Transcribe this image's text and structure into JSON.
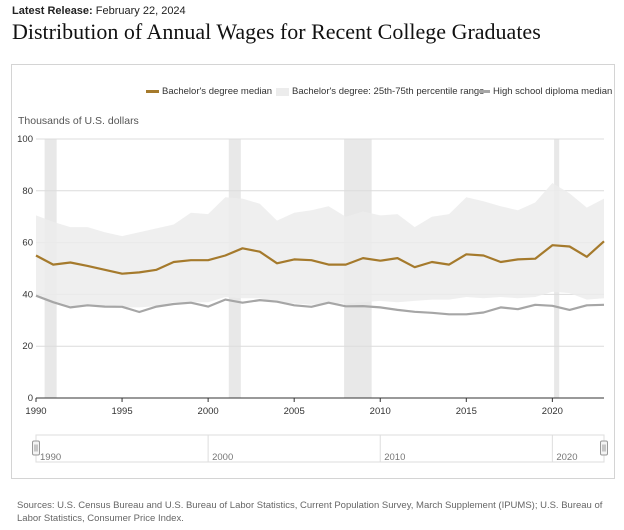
{
  "header": {
    "release_label": "Latest Release:",
    "release_date": "February 22, 2024",
    "title": "Distribution of Annual Wages for Recent College Graduates"
  },
  "legend": {
    "items": [
      {
        "label": "Bachelor's degree median",
        "color": "#a57a2c",
        "kind": "line"
      },
      {
        "label": "Bachelor's degree: 25th-75th percentile range",
        "color": "#ececec",
        "kind": "band"
      },
      {
        "label": "High school diploma median",
        "color": "#a6a6a6",
        "kind": "line"
      }
    ]
  },
  "unit_label": "Thousands of U.S. dollars",
  "navigator": {
    "labels": [
      "1990",
      "2000",
      "2010",
      "2020"
    ]
  },
  "source": "Sources: U.S. Census Bureau and U.S. Bureau of Labor Statistics, Current Population Survey, March Supplement (IPUMS); U.S. Bureau of Labor Statistics, Consumer Price Index.",
  "chart_data": {
    "type": "line",
    "title": "Distribution of Annual Wages for Recent College Graduates",
    "ylabel": "Thousands of U.S. dollars",
    "xlabel": "",
    "xlim": [
      1990,
      2023
    ],
    "ylim": [
      0,
      100
    ],
    "x_ticks": [
      1990,
      1995,
      2000,
      2005,
      2010,
      2015,
      2020
    ],
    "y_ticks": [
      0,
      20,
      40,
      60,
      80,
      100
    ],
    "grid": "horizontal",
    "legend_position": "top",
    "recessions": [
      [
        1990.5,
        1991.2
      ],
      [
        2001.2,
        2001.9
      ],
      [
        2007.9,
        2009.5
      ],
      [
        2020.1,
        2020.4
      ]
    ],
    "x": [
      1990,
      1991,
      1992,
      1993,
      1994,
      1995,
      1996,
      1997,
      1998,
      1999,
      2000,
      2001,
      2002,
      2003,
      2004,
      2005,
      2006,
      2007,
      2008,
      2009,
      2010,
      2011,
      2012,
      2013,
      2014,
      2015,
      2016,
      2017,
      2018,
      2019,
      2020,
      2021,
      2022,
      2023
    ],
    "series": [
      {
        "name": "Bachelor's degree median",
        "color": "#a57a2c",
        "values": [
          55.0,
          51.5,
          52.3,
          51.0,
          49.5,
          48.0,
          48.5,
          49.5,
          52.5,
          53.2,
          53.2,
          55.0,
          57.8,
          56.5,
          52.0,
          53.5,
          53.2,
          51.5,
          51.5,
          54.0,
          53.0,
          54.0,
          50.5,
          52.5,
          51.5,
          55.5,
          55.0,
          52.5,
          53.5,
          53.8,
          59.0,
          58.5,
          54.5,
          60.5
        ]
      },
      {
        "name": "Bachelor's degree: 25th-75th percentile range",
        "color": "#ececec",
        "lower": [
          40.0,
          37.5,
          35.5,
          36.0,
          35.5,
          35.0,
          35.0,
          35.5,
          37.0,
          37.0,
          37.0,
          39.0,
          38.5,
          38.5,
          37.0,
          36.5,
          36.0,
          36.5,
          36.5,
          37.0,
          37.5,
          37.0,
          37.5,
          38.0,
          38.0,
          39.0,
          38.5,
          39.0,
          38.5,
          39.0,
          41.0,
          40.5,
          38.0,
          38.5
        ],
        "upper": [
          70.5,
          68.0,
          66.0,
          66.0,
          64.0,
          62.5,
          64.0,
          65.5,
          67.0,
          71.5,
          71.0,
          77.5,
          77.0,
          75.0,
          68.5,
          71.5,
          72.5,
          74.0,
          70.0,
          72.0,
          70.5,
          71.0,
          66.0,
          70.0,
          71.0,
          77.5,
          76.0,
          74.0,
          72.5,
          75.5,
          83.0,
          79.0,
          73.5,
          77.0
        ]
      },
      {
        "name": "High school diploma median",
        "color": "#a6a6a6",
        "values": [
          39.5,
          37.0,
          35.0,
          35.8,
          35.3,
          35.2,
          33.2,
          35.3,
          36.3,
          36.8,
          35.3,
          38.0,
          36.8,
          37.8,
          37.2,
          35.8,
          35.2,
          36.8,
          35.4,
          35.5,
          35.0,
          34.0,
          33.3,
          32.9,
          32.3,
          32.3,
          33.0,
          35.0,
          34.3,
          36.0,
          35.6,
          34.0,
          35.8,
          36.0
        ]
      }
    ]
  }
}
